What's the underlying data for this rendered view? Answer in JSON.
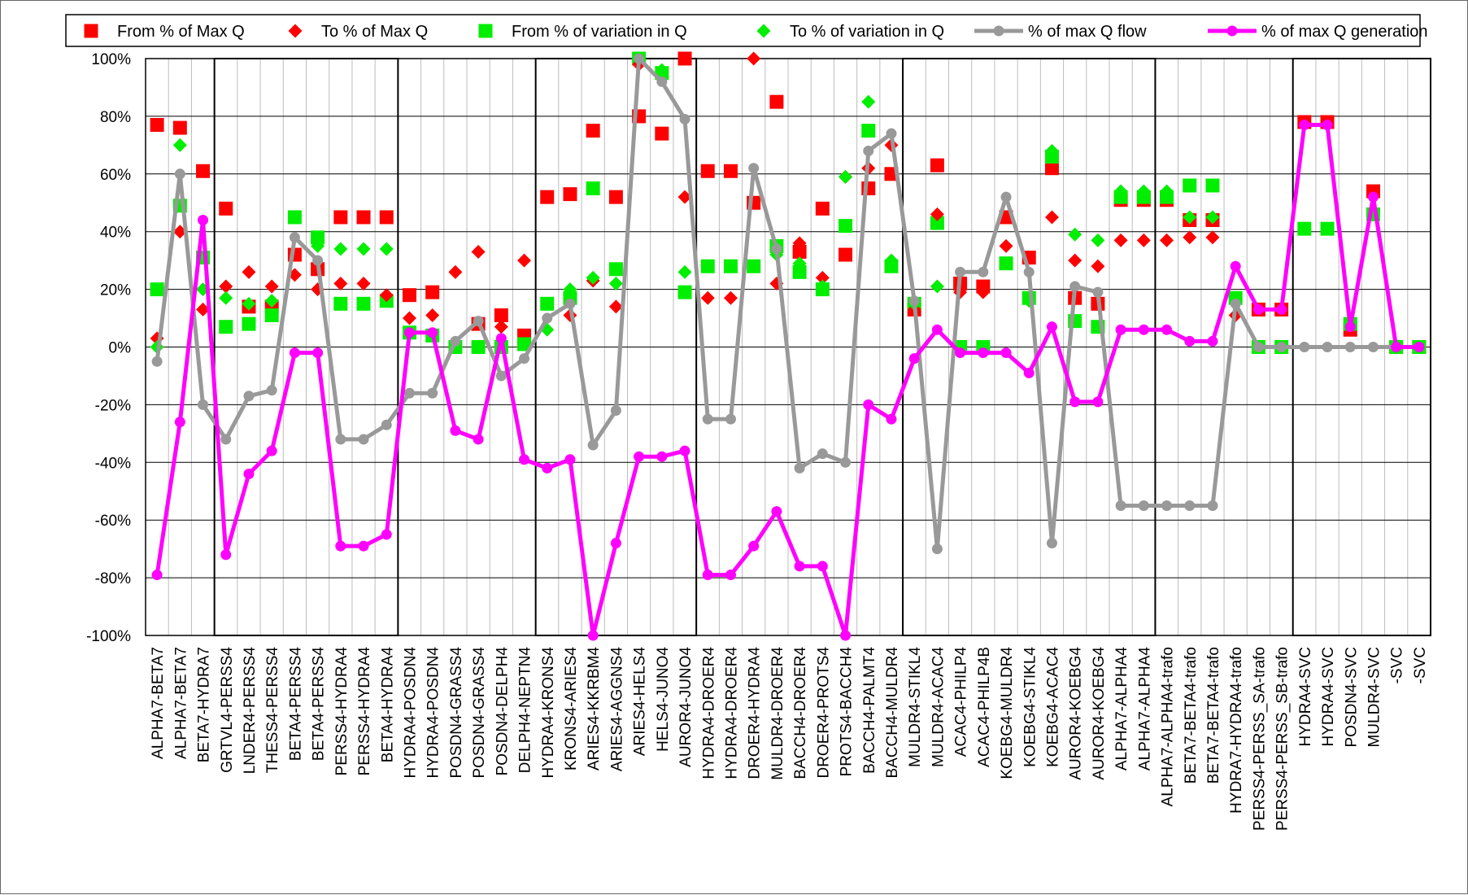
{
  "chart_data": {
    "type": "line",
    "xlabel": "",
    "ylabel": "",
    "ylim": [
      -100,
      100
    ],
    "y_ticks": [
      "-100%",
      "-80%",
      "-60%",
      "-40%",
      "-20%",
      "0%",
      "20%",
      "40%",
      "60%",
      "80%",
      "100%"
    ],
    "grid": true,
    "legend_position": "top",
    "categories": [
      "ALPHA7-BETA7",
      "ALPHA7-BETA7",
      "BETA7-HYDRA7",
      "GRTVL4-PERSS4",
      "LNDER4-PERSS4",
      "THESS4-PERSS4",
      "BETA4-PERSS4",
      "BETA4-PERSS4",
      "PERSS4-HYDRA4",
      "PERSS4-HYDRA4",
      "BETA4-HYDRA4",
      "HYDRA4-POSDN4",
      "HYDRA4-POSDN4",
      "POSDN4-GRASS4",
      "POSDN4-GRASS4",
      "POSDN4-DELPH4",
      "DELPH4-NEPTN4",
      "HYDRA4-KRONS4",
      "KRONS4-ARIES4",
      "ARIES4-KKRBM4",
      "ARIES4-AGGNS4",
      "ARIES4-HELS4",
      "HELS4-JUNO4",
      "AUROR4-JUNO4",
      "HYDRA4-DROER4",
      "HYDRA4-DROER4",
      "DROER4-HYDRA4",
      "MULDR4-DROER4",
      "BACCH4-DROER4",
      "DROER4-PROTS4",
      "PROTS4-BACCH4",
      "BACCH4-PALMT4",
      "BACCH4-MULDR4",
      "MULDR4-STIKL4",
      "MULDR4-ACAC4",
      "ACAC4-PHILP4",
      "ACAC4-PHILP4B",
      "KOEBG4-MULDR4",
      "KOEBG4-STIKL4",
      "KOEBG4-ACAC4",
      "AUROR4-KOEBG4",
      "AUROR4-KOEBG4",
      "ALPHA7-ALPHA4",
      "ALPHA7-ALPHA4",
      "ALPHA7-ALPHA4-trafo",
      "BETA7-BETA4-trafo",
      "BETA7-BETA4-trafo",
      "HYDRA7-HYDRA4-trafo",
      "PERSS4-PERSS_SA-trafo",
      "PERSS4-PERSS_SB-trafo",
      "HYDRA4-SVC",
      "HYDRA4-SVC",
      "POSDN4-SVC",
      "MULDR4-SVC",
      "-SVC",
      "-SVC"
    ],
    "group_boxes": [
      [
        3,
        10
      ],
      [
        17,
        23
      ],
      [
        33,
        43
      ],
      [
        50,
        55
      ]
    ],
    "series": [
      {
        "name": "From % of Max Q",
        "marker": "square",
        "color": "#ff0000",
        "values": [
          77,
          76,
          61,
          48,
          14,
          14,
          32,
          27,
          45,
          45,
          45,
          18,
          19,
          null,
          8,
          11,
          4,
          52,
          53,
          75,
          52,
          80,
          74,
          100,
          61,
          61,
          50,
          85,
          33,
          48,
          32,
          55,
          60,
          13,
          63,
          22,
          21,
          45,
          31,
          62,
          17,
          15,
          51,
          51,
          51,
          44,
          44,
          null,
          13,
          13,
          78,
          78,
          6,
          54,
          0,
          0
        ]
      },
      {
        "name": "To % of Max Q",
        "marker": "diamond",
        "color": "#ff0000",
        "values": [
          3,
          40,
          13,
          21,
          26,
          21,
          25,
          20,
          22,
          22,
          18,
          10,
          11,
          26,
          33,
          7,
          30,
          null,
          11,
          23,
          14,
          98,
          null,
          52,
          17,
          17,
          100,
          22,
          36,
          24,
          59,
          62,
          70,
          13,
          46,
          19,
          19,
          35,
          null,
          45,
          30,
          28,
          37,
          37,
          37,
          38,
          38,
          11,
          13,
          13,
          null,
          null,
          null,
          null,
          null,
          null
        ]
      },
      {
        "name": "From % of variation in Q",
        "marker": "square",
        "color": "#00ee00",
        "values": [
          20,
          49,
          31,
          7,
          8,
          11,
          45,
          38,
          15,
          15,
          16,
          5,
          4,
          0,
          0,
          0,
          1,
          15,
          17,
          55,
          27,
          100,
          95,
          19,
          28,
          28,
          28,
          35,
          26,
          20,
          42,
          75,
          28,
          15,
          43,
          0,
          0,
          29,
          17,
          66,
          9,
          7,
          52,
          52,
          52,
          56,
          56,
          17,
          0,
          0,
          41,
          41,
          8,
          46,
          0,
          0
        ]
      },
      {
        "name": "To % of variation in Q",
        "marker": "diamond",
        "color": "#00ee00",
        "values": [
          0,
          70,
          20,
          17,
          15,
          16,
          null,
          35,
          34,
          34,
          34,
          null,
          null,
          null,
          null,
          null,
          null,
          6,
          20,
          24,
          22,
          null,
          96,
          26,
          null,
          null,
          28,
          32,
          29,
          21,
          59,
          85,
          30,
          15,
          21,
          0,
          0,
          null,
          16,
          68,
          39,
          37,
          54,
          54,
          54,
          45,
          45,
          null,
          0,
          0,
          null,
          null,
          null,
          null,
          null,
          null
        ]
      },
      {
        "name": "% of max Q flow",
        "marker": "circle",
        "color": "#999999",
        "values": [
          -5,
          60,
          -20,
          -32,
          -17,
          -15,
          38,
          30,
          -32,
          -32,
          -27,
          -16,
          -16,
          2,
          9,
          -10,
          -4,
          10,
          15,
          -34,
          -22,
          100,
          92,
          79,
          -25,
          -25,
          62,
          34,
          -42,
          -37,
          -40,
          68,
          74,
          16,
          -70,
          26,
          26,
          52,
          26,
          -68,
          21,
          19,
          -55,
          -55,
          -55,
          -55,
          -55,
          15,
          0,
          0,
          0,
          0,
          0,
          0,
          0,
          0
        ]
      },
      {
        "name": "% of max Q generation",
        "marker": "circle",
        "color": "#ff00ff",
        "values": [
          -79,
          -26,
          44,
          -72,
          -44,
          -36,
          -2,
          -2,
          -69,
          -69,
          -65,
          5,
          5,
          -29,
          -32,
          3,
          -39,
          -42,
          -39,
          -100,
          -68,
          -38,
          -38,
          -36,
          -79,
          -79,
          -69,
          -57,
          -76,
          -76,
          -100,
          -20,
          -25,
          -4,
          6,
          -2,
          -2,
          -2,
          -9,
          7,
          -19,
          -19,
          6,
          6,
          6,
          2,
          2,
          28,
          13,
          13,
          77,
          77,
          7,
          52,
          0,
          0
        ]
      }
    ]
  }
}
